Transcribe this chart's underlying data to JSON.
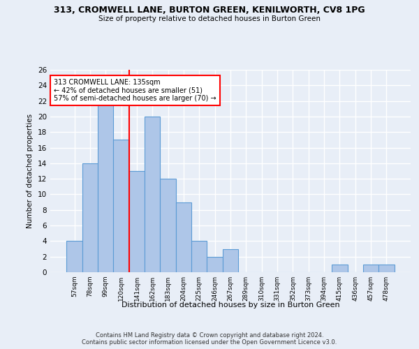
{
  "title1": "313, CROMWELL LANE, BURTON GREEN, KENILWORTH, CV8 1PG",
  "title2": "Size of property relative to detached houses in Burton Green",
  "xlabel": "Distribution of detached houses by size in Burton Green",
  "ylabel": "Number of detached properties",
  "bar_labels": [
    "57sqm",
    "78sqm",
    "99sqm",
    "120sqm",
    "141sqm",
    "162sqm",
    "183sqm",
    "204sqm",
    "225sqm",
    "246sqm",
    "267sqm",
    "289sqm",
    "310sqm",
    "331sqm",
    "352sqm",
    "373sqm",
    "394sqm",
    "415sqm",
    "436sqm",
    "457sqm",
    "478sqm"
  ],
  "bar_values": [
    4,
    14,
    22,
    17,
    13,
    20,
    12,
    9,
    4,
    2,
    3,
    0,
    0,
    0,
    0,
    0,
    0,
    1,
    0,
    1,
    1
  ],
  "bar_color": "#aec6e8",
  "bar_edge_color": "#5b9bd5",
  "vline_x": 3.5,
  "vline_color": "red",
  "annotation_line1": "313 CROMWELL LANE: 135sqm",
  "annotation_line2": "← 42% of detached houses are smaller (51)",
  "annotation_line3": "57% of semi-detached houses are larger (70) →",
  "annotation_box_color": "white",
  "annotation_box_edge_color": "red",
  "ylim": [
    0,
    26
  ],
  "yticks": [
    0,
    2,
    4,
    6,
    8,
    10,
    12,
    14,
    16,
    18,
    20,
    22,
    24,
    26
  ],
  "footer": "Contains HM Land Registry data © Crown copyright and database right 2024.\nContains public sector information licensed under the Open Government Licence v3.0.",
  "bg_color": "#e8eef7",
  "grid_color": "white"
}
